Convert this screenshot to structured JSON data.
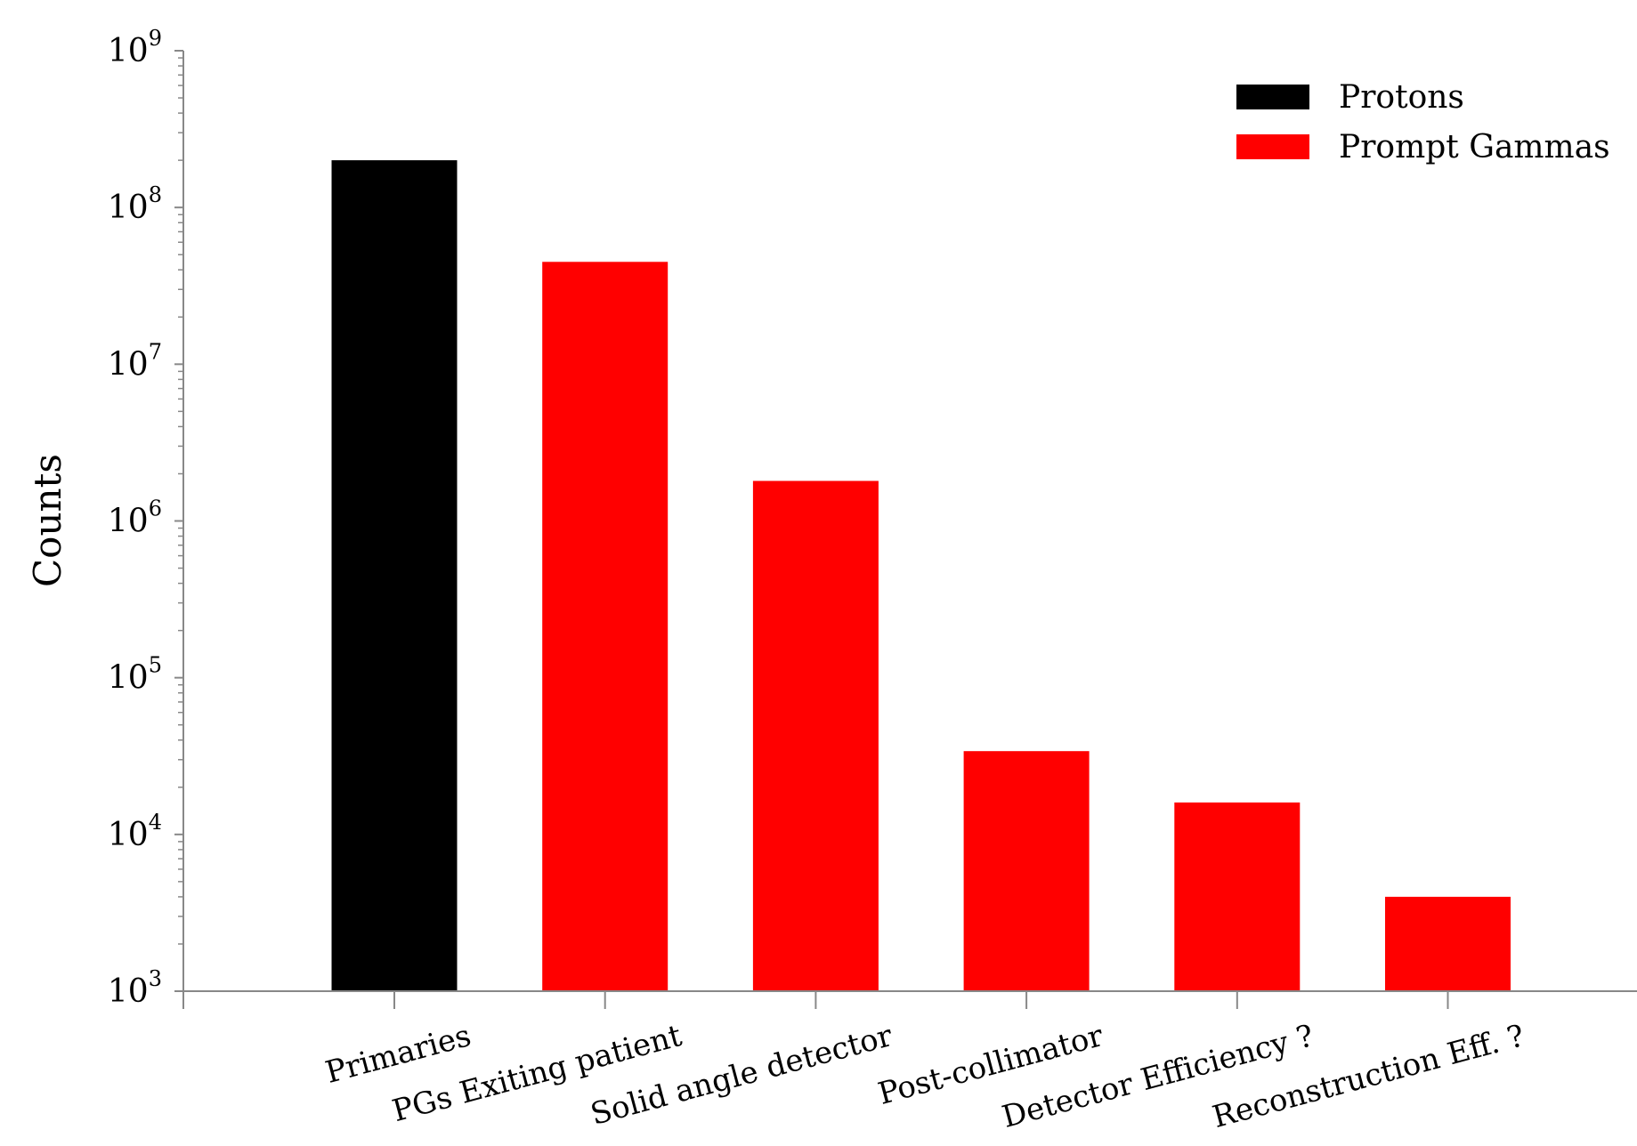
{
  "chart_data": {
    "type": "bar",
    "ylabel": "Counts",
    "yscale": "log",
    "ylim": [
      1000,
      1000000000
    ],
    "ytick_labels": [
      {
        "base": "10",
        "exp": "3",
        "value": 1000
      },
      {
        "base": "10",
        "exp": "4",
        "value": 10000
      },
      {
        "base": "10",
        "exp": "5",
        "value": 100000
      },
      {
        "base": "10",
        "exp": "6",
        "value": 1000000
      },
      {
        "base": "10",
        "exp": "7",
        "value": 10000000
      },
      {
        "base": "10",
        "exp": "8",
        "value": 100000000
      },
      {
        "base": "10",
        "exp": "9",
        "value": 1000000000
      }
    ],
    "categories": [
      "Primaries",
      "PGs Exiting patient",
      "Solid angle detector",
      "Post-collimator",
      "Detector Efficiency ?",
      "Reconstruction Eff. ?"
    ],
    "series": [
      {
        "name": "Protons",
        "color": "#000000",
        "values": [
          200000000,
          null,
          null,
          null,
          null,
          null
        ]
      },
      {
        "name": "Prompt Gammas",
        "color": "#ff0000",
        "values": [
          null,
          45000000,
          1800000,
          34000,
          16000,
          4000
        ]
      }
    ],
    "legend": {
      "placement": "top-right",
      "entries": [
        "Protons",
        "Prompt Gammas"
      ]
    },
    "grid": false
  }
}
